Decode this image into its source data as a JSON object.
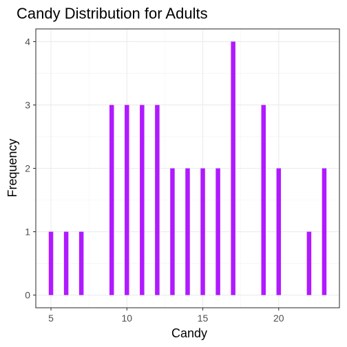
{
  "chart_data": {
    "type": "bar",
    "title": "Candy Distribution for Adults",
    "xlabel": "Candy",
    "ylabel": "Frequency",
    "x": [
      5,
      6,
      7,
      9,
      10,
      11,
      12,
      13,
      14,
      15,
      16,
      17,
      19,
      20,
      22,
      23
    ],
    "values": [
      1,
      1,
      1,
      3,
      3,
      3,
      3,
      2,
      2,
      2,
      2,
      4,
      3,
      2,
      1,
      2
    ],
    "xlim": [
      4.0,
      24.0
    ],
    "ylim": [
      -0.2,
      4.2
    ],
    "x_ticks": [
      5,
      10,
      15,
      20
    ],
    "x_tick_labels": [
      "5",
      "10",
      "15",
      "20"
    ],
    "y_ticks": [
      0,
      1,
      2,
      3,
      4
    ],
    "y_tick_labels": [
      "0",
      "1",
      "2",
      "3",
      "4"
    ],
    "bar_color": "#b01aff",
    "grid": true,
    "legend": "none"
  }
}
